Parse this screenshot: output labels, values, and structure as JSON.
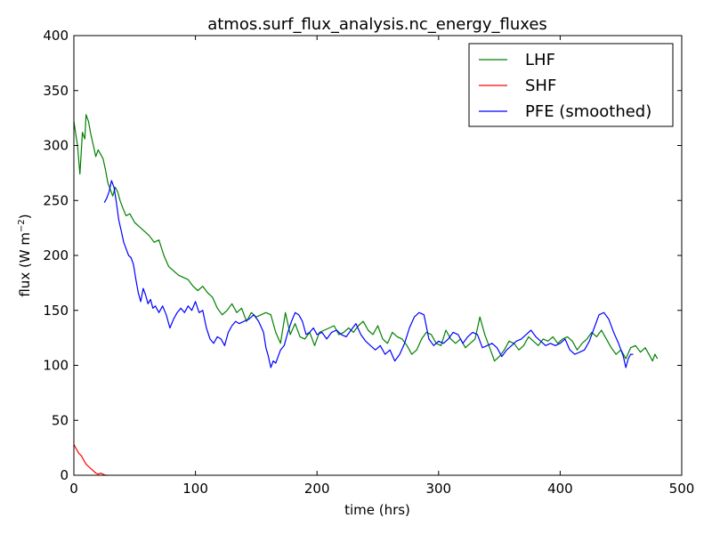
{
  "chart_data": {
    "type": "line",
    "title": "atmos.surf_flux_analysis.nc_energy_fluxes",
    "xlabel": "time (hrs)",
    "ylabel_main": "flux (W m",
    "ylabel_sup": "−2",
    "ylabel_close": ")",
    "xlim": [
      0,
      500
    ],
    "ylim": [
      0,
      400
    ],
    "xticks": [
      0,
      100,
      200,
      300,
      400,
      500
    ],
    "yticks": [
      0,
      50,
      100,
      150,
      200,
      250,
      300,
      350,
      400
    ],
    "grid": false,
    "legend_position": "top-right",
    "series": [
      {
        "name": "LHF",
        "color": "#008000",
        "points": [
          [
            0,
            322
          ],
          [
            3,
            300
          ],
          [
            5,
            274
          ],
          [
            7,
            312
          ],
          [
            9,
            306
          ],
          [
            10,
            328
          ],
          [
            12,
            322
          ],
          [
            14,
            310
          ],
          [
            16,
            300
          ],
          [
            18,
            290
          ],
          [
            20,
            296
          ],
          [
            22,
            292
          ],
          [
            24,
            288
          ],
          [
            26,
            278
          ],
          [
            28,
            266
          ],
          [
            30,
            260
          ],
          [
            32,
            254
          ],
          [
            34,
            262
          ],
          [
            36,
            258
          ],
          [
            38,
            250
          ],
          [
            40,
            244
          ],
          [
            43,
            236
          ],
          [
            46,
            238
          ],
          [
            50,
            230
          ],
          [
            54,
            226
          ],
          [
            58,
            222
          ],
          [
            62,
            218
          ],
          [
            66,
            212
          ],
          [
            70,
            214
          ],
          [
            74,
            200
          ],
          [
            78,
            190
          ],
          [
            82,
            186
          ],
          [
            86,
            182
          ],
          [
            90,
            180
          ],
          [
            94,
            178
          ],
          [
            98,
            172
          ],
          [
            102,
            168
          ],
          [
            106,
            172
          ],
          [
            110,
            166
          ],
          [
            114,
            162
          ],
          [
            118,
            152
          ],
          [
            122,
            146
          ],
          [
            126,
            150
          ],
          [
            130,
            156
          ],
          [
            134,
            148
          ],
          [
            138,
            152
          ],
          [
            142,
            140
          ],
          [
            146,
            148
          ],
          [
            150,
            144
          ],
          [
            154,
            146
          ],
          [
            158,
            148
          ],
          [
            162,
            146
          ],
          [
            166,
            130
          ],
          [
            170,
            120
          ],
          [
            174,
            148
          ],
          [
            178,
            128
          ],
          [
            182,
            138
          ],
          [
            186,
            126
          ],
          [
            190,
            124
          ],
          [
            194,
            130
          ],
          [
            198,
            118
          ],
          [
            202,
            130
          ],
          [
            206,
            132
          ],
          [
            210,
            134
          ],
          [
            214,
            136
          ],
          [
            218,
            128
          ],
          [
            222,
            130
          ],
          [
            226,
            134
          ],
          [
            230,
            130
          ],
          [
            234,
            136
          ],
          [
            238,
            140
          ],
          [
            242,
            132
          ],
          [
            246,
            128
          ],
          [
            250,
            136
          ],
          [
            254,
            124
          ],
          [
            258,
            120
          ],
          [
            262,
            130
          ],
          [
            266,
            126
          ],
          [
            270,
            124
          ],
          [
            274,
            118
          ],
          [
            278,
            110
          ],
          [
            282,
            114
          ],
          [
            286,
            124
          ],
          [
            290,
            130
          ],
          [
            294,
            128
          ],
          [
            298,
            120
          ],
          [
            302,
            118
          ],
          [
            306,
            132
          ],
          [
            310,
            124
          ],
          [
            314,
            120
          ],
          [
            318,
            124
          ],
          [
            322,
            116
          ],
          [
            326,
            120
          ],
          [
            330,
            124
          ],
          [
            334,
            144
          ],
          [
            338,
            128
          ],
          [
            342,
            116
          ],
          [
            346,
            104
          ],
          [
            350,
            108
          ],
          [
            354,
            114
          ],
          [
            358,
            122
          ],
          [
            362,
            120
          ],
          [
            366,
            114
          ],
          [
            370,
            118
          ],
          [
            374,
            126
          ],
          [
            378,
            122
          ],
          [
            382,
            118
          ],
          [
            386,
            124
          ],
          [
            390,
            122
          ],
          [
            394,
            126
          ],
          [
            398,
            120
          ],
          [
            402,
            124
          ],
          [
            406,
            126
          ],
          [
            410,
            122
          ],
          [
            414,
            114
          ],
          [
            418,
            120
          ],
          [
            422,
            124
          ],
          [
            426,
            130
          ],
          [
            430,
            126
          ],
          [
            434,
            132
          ],
          [
            438,
            124
          ],
          [
            442,
            116
          ],
          [
            446,
            110
          ],
          [
            450,
            114
          ],
          [
            454,
            106
          ],
          [
            458,
            116
          ],
          [
            462,
            118
          ],
          [
            466,
            112
          ],
          [
            470,
            116
          ],
          [
            474,
            108
          ],
          [
            476,
            104
          ],
          [
            478,
            110
          ],
          [
            480,
            106
          ]
        ]
      },
      {
        "name": "SHF",
        "color": "#ff0000",
        "points": [
          [
            0,
            28
          ],
          [
            2,
            24
          ],
          [
            4,
            20
          ],
          [
            6,
            18
          ],
          [
            8,
            14
          ],
          [
            10,
            10
          ],
          [
            12,
            8
          ],
          [
            14,
            6
          ],
          [
            16,
            4
          ],
          [
            18,
            2
          ],
          [
            20,
            1
          ],
          [
            22,
            2
          ],
          [
            24,
            1
          ],
          [
            26,
            0
          ],
          [
            28,
            0
          ]
        ]
      },
      {
        "name": "PFE (smoothed)",
        "color": "#0000ff",
        "points": [
          [
            25,
            248
          ],
          [
            27,
            252
          ],
          [
            29,
            258
          ],
          [
            31,
            268
          ],
          [
            33,
            262
          ],
          [
            35,
            248
          ],
          [
            37,
            232
          ],
          [
            39,
            222
          ],
          [
            41,
            212
          ],
          [
            43,
            206
          ],
          [
            45,
            200
          ],
          [
            47,
            198
          ],
          [
            49,
            192
          ],
          [
            51,
            178
          ],
          [
            53,
            166
          ],
          [
            55,
            158
          ],
          [
            57,
            170
          ],
          [
            59,
            164
          ],
          [
            61,
            156
          ],
          [
            63,
            160
          ],
          [
            65,
            152
          ],
          [
            67,
            154
          ],
          [
            70,
            148
          ],
          [
            73,
            154
          ],
          [
            76,
            146
          ],
          [
            79,
            134
          ],
          [
            82,
            142
          ],
          [
            85,
            148
          ],
          [
            88,
            152
          ],
          [
            91,
            148
          ],
          [
            94,
            154
          ],
          [
            97,
            150
          ],
          [
            100,
            158
          ],
          [
            103,
            148
          ],
          [
            106,
            150
          ],
          [
            109,
            134
          ],
          [
            112,
            124
          ],
          [
            115,
            120
          ],
          [
            118,
            126
          ],
          [
            121,
            124
          ],
          [
            124,
            118
          ],
          [
            127,
            130
          ],
          [
            130,
            136
          ],
          [
            133,
            140
          ],
          [
            136,
            138
          ],
          [
            140,
            140
          ],
          [
            144,
            142
          ],
          [
            148,
            146
          ],
          [
            152,
            140
          ],
          [
            156,
            130
          ],
          [
            158,
            116
          ],
          [
            160,
            108
          ],
          [
            162,
            98
          ],
          [
            164,
            104
          ],
          [
            166,
            102
          ],
          [
            168,
            108
          ],
          [
            170,
            114
          ],
          [
            173,
            118
          ],
          [
            176,
            130
          ],
          [
            179,
            140
          ],
          [
            182,
            148
          ],
          [
            185,
            146
          ],
          [
            188,
            140
          ],
          [
            191,
            128
          ],
          [
            194,
            130
          ],
          [
            197,
            134
          ],
          [
            200,
            128
          ],
          [
            204,
            130
          ],
          [
            208,
            124
          ],
          [
            212,
            130
          ],
          [
            216,
            132
          ],
          [
            220,
            128
          ],
          [
            224,
            126
          ],
          [
            228,
            132
          ],
          [
            232,
            138
          ],
          [
            236,
            128
          ],
          [
            240,
            122
          ],
          [
            244,
            118
          ],
          [
            248,
            114
          ],
          [
            252,
            118
          ],
          [
            256,
            110
          ],
          [
            260,
            114
          ],
          [
            264,
            104
          ],
          [
            268,
            110
          ],
          [
            272,
            120
          ],
          [
            276,
            134
          ],
          [
            280,
            144
          ],
          [
            284,
            148
          ],
          [
            288,
            146
          ],
          [
            292,
            124
          ],
          [
            296,
            118
          ],
          [
            300,
            122
          ],
          [
            304,
            120
          ],
          [
            308,
            124
          ],
          [
            312,
            130
          ],
          [
            316,
            128
          ],
          [
            320,
            120
          ],
          [
            324,
            126
          ],
          [
            328,
            130
          ],
          [
            332,
            128
          ],
          [
            336,
            116
          ],
          [
            340,
            118
          ],
          [
            344,
            120
          ],
          [
            348,
            116
          ],
          [
            352,
            108
          ],
          [
            356,
            114
          ],
          [
            360,
            118
          ],
          [
            364,
            122
          ],
          [
            368,
            124
          ],
          [
            372,
            128
          ],
          [
            376,
            132
          ],
          [
            380,
            126
          ],
          [
            384,
            122
          ],
          [
            388,
            118
          ],
          [
            392,
            120
          ],
          [
            396,
            118
          ],
          [
            400,
            120
          ],
          [
            404,
            124
          ],
          [
            408,
            114
          ],
          [
            412,
            110
          ],
          [
            416,
            112
          ],
          [
            420,
            114
          ],
          [
            424,
            122
          ],
          [
            428,
            134
          ],
          [
            432,
            146
          ],
          [
            436,
            148
          ],
          [
            440,
            142
          ],
          [
            444,
            130
          ],
          [
            448,
            120
          ],
          [
            452,
            108
          ],
          [
            454,
            98
          ],
          [
            456,
            106
          ],
          [
            458,
            110
          ],
          [
            460,
            110
          ]
        ]
      }
    ]
  }
}
